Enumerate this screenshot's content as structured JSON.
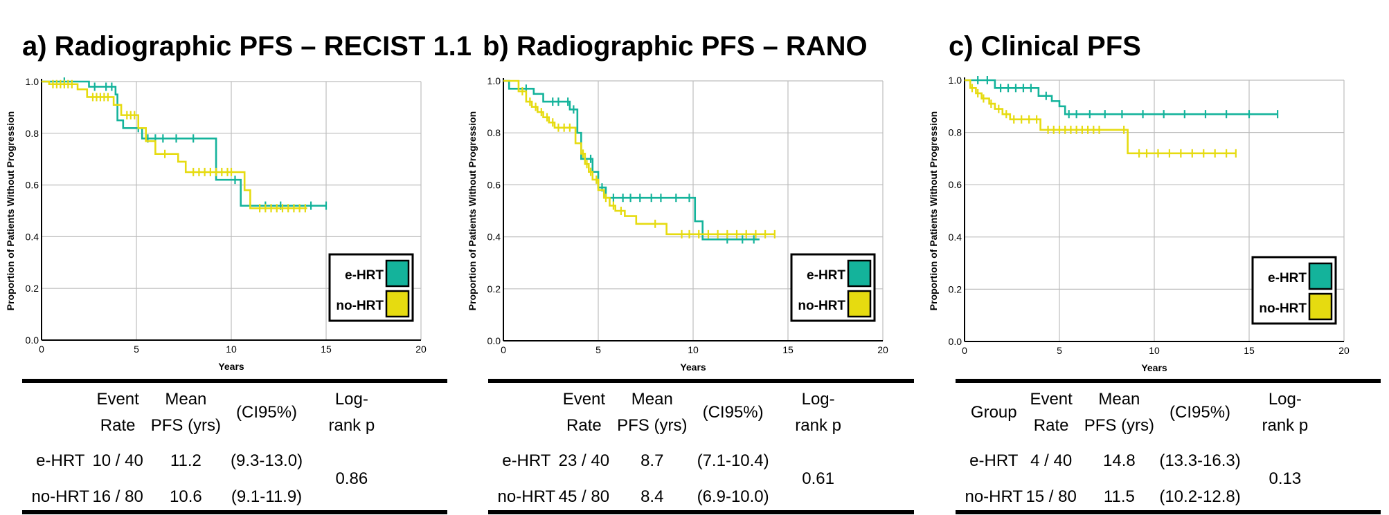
{
  "colors": {
    "e_hrt": "#14b39b",
    "no_hrt": "#e6db10",
    "grid": "#bdbdbd"
  },
  "chart_data": [
    {
      "type": "line",
      "subtype": "kaplan-meier step",
      "title": "a) Radiographic PFS – RECIST 1.1",
      "xlabel": "Years",
      "ylabel": "Proportion of Patients Without Progression",
      "xlim": [
        0,
        20
      ],
      "ylim": [
        0,
        1.0
      ],
      "xticks": [
        "0",
        "5",
        "10",
        "15",
        "20"
      ],
      "yticks": [
        "0.0",
        "0.2",
        "0.4",
        "0.6",
        "0.8",
        "1.0"
      ],
      "legend": [
        "e-HRT",
        "no-HRT"
      ],
      "series": [
        {
          "name": "e-HRT",
          "steps": [
            [
              0,
              1.0
            ],
            [
              2.5,
              0.98
            ],
            [
              3.9,
              0.95
            ],
            [
              4.0,
              0.85
            ],
            [
              4.3,
              0.82
            ],
            [
              5.3,
              0.78
            ],
            [
              9.2,
              0.62
            ],
            [
              10.5,
              0.52
            ],
            [
              15.0,
              0.52
            ]
          ],
          "censors": [
            1.2,
            2.8,
            3.4,
            3.7,
            5.1,
            5.6,
            6.0,
            6.4,
            7.1,
            8.0,
            10.2,
            11.8,
            12.6,
            14.2,
            15.0
          ]
        },
        {
          "name": "no-HRT",
          "steps": [
            [
              0,
              1.0
            ],
            [
              0.4,
              0.99
            ],
            [
              1.9,
              0.97
            ],
            [
              2.4,
              0.94
            ],
            [
              3.8,
              0.91
            ],
            [
              4.2,
              0.87
            ],
            [
              5.1,
              0.82
            ],
            [
              5.5,
              0.77
            ],
            [
              6.0,
              0.72
            ],
            [
              7.2,
              0.69
            ],
            [
              7.6,
              0.65
            ],
            [
              10.7,
              0.58
            ],
            [
              11.0,
              0.51
            ],
            [
              14.0,
              0.51
            ]
          ],
          "censors": [
            0.6,
            0.8,
            1.0,
            1.2,
            1.4,
            1.6,
            2.7,
            2.9,
            3.1,
            3.3,
            3.5,
            4.5,
            4.7,
            4.9,
            6.5,
            8.0,
            8.3,
            8.6,
            8.9,
            9.2,
            9.5,
            9.8,
            10.0,
            11.5,
            11.8,
            12.1,
            12.4,
            12.7,
            13.0,
            13.3,
            13.6,
            13.9
          ]
        }
      ]
    },
    {
      "type": "line",
      "subtype": "kaplan-meier step",
      "title": "b) Radiographic PFS – RANO",
      "xlabel": "Years",
      "ylabel": "Proportion of Patients Without Progression",
      "xlim": [
        0,
        20
      ],
      "ylim": [
        0,
        1.0
      ],
      "xticks": [
        "0",
        "5",
        "10",
        "15",
        "20"
      ],
      "yticks": [
        "0.0",
        "0.2",
        "0.4",
        "0.6",
        "0.8",
        "1.0"
      ],
      "legend": [
        "e-HRT",
        "no-HRT"
      ],
      "series": [
        {
          "name": "e-HRT",
          "steps": [
            [
              0,
              1.0
            ],
            [
              0.3,
              0.97
            ],
            [
              1.6,
              0.95
            ],
            [
              2.1,
              0.92
            ],
            [
              3.5,
              0.89
            ],
            [
              3.9,
              0.8
            ],
            [
              4.1,
              0.7
            ],
            [
              4.7,
              0.65
            ],
            [
              5.0,
              0.59
            ],
            [
              5.4,
              0.55
            ],
            [
              10.1,
              0.46
            ],
            [
              10.5,
              0.39
            ],
            [
              13.5,
              0.39
            ]
          ],
          "censors": [
            1.2,
            2.6,
            2.9,
            3.4,
            3.7,
            4.6,
            5.2,
            5.8,
            6.3,
            6.7,
            7.2,
            7.8,
            8.3,
            9.1,
            9.8,
            11.8,
            12.6,
            13.2
          ]
        },
        {
          "name": "no-HRT",
          "steps": [
            [
              0,
              1.0
            ],
            [
              0.8,
              0.96
            ],
            [
              1.2,
              0.92
            ],
            [
              1.5,
              0.9
            ],
            [
              1.8,
              0.88
            ],
            [
              2.1,
              0.86
            ],
            [
              2.4,
              0.84
            ],
            [
              2.7,
              0.82
            ],
            [
              3.8,
              0.76
            ],
            [
              4.1,
              0.72
            ],
            [
              4.3,
              0.68
            ],
            [
              4.5,
              0.65
            ],
            [
              4.7,
              0.62
            ],
            [
              5.0,
              0.58
            ],
            [
              5.3,
              0.55
            ],
            [
              5.6,
              0.52
            ],
            [
              5.9,
              0.5
            ],
            [
              6.4,
              0.48
            ],
            [
              7.0,
              0.45
            ],
            [
              8.6,
              0.41
            ],
            [
              14.3,
              0.41
            ]
          ],
          "censors": [
            1.0,
            1.4,
            1.7,
            2.0,
            2.3,
            2.6,
            2.9,
            3.2,
            3.5,
            4.2,
            4.4,
            4.6,
            4.9,
            5.4,
            5.8,
            6.2,
            8.0,
            9.4,
            9.8,
            10.3,
            10.8,
            11.3,
            11.8,
            12.3,
            12.8,
            13.3,
            13.8,
            14.3
          ]
        }
      ]
    },
    {
      "type": "line",
      "subtype": "kaplan-meier step",
      "title": "c) Clinical PFS",
      "xlabel": "Years",
      "ylabel": "Proportion of Patients Without Progression",
      "xlim": [
        0,
        20
      ],
      "ylim": [
        0,
        1.0
      ],
      "xticks": [
        "0",
        "5",
        "10",
        "15",
        "20"
      ],
      "yticks": [
        "0.0",
        "0.2",
        "0.4",
        "0.6",
        "0.8",
        "1.0"
      ],
      "legend": [
        "e-HRT",
        "no-HRT"
      ],
      "series": [
        {
          "name": "e-HRT",
          "steps": [
            [
              0,
              1.0
            ],
            [
              1.6,
              0.97
            ],
            [
              3.9,
              0.94
            ],
            [
              4.6,
              0.92
            ],
            [
              5.0,
              0.9
            ],
            [
              5.3,
              0.87
            ],
            [
              16.5,
              0.87
            ]
          ],
          "censors": [
            0.7,
            1.2,
            1.9,
            2.3,
            2.7,
            3.1,
            3.5,
            4.3,
            5.5,
            5.9,
            6.6,
            7.4,
            8.3,
            9.4,
            10.5,
            11.6,
            12.7,
            13.8,
            15.0,
            16.5
          ]
        },
        {
          "name": "no-HRT",
          "steps": [
            [
              0,
              1.0
            ],
            [
              0.3,
              0.97
            ],
            [
              0.6,
              0.95
            ],
            [
              0.9,
              0.93
            ],
            [
              1.3,
              0.91
            ],
            [
              1.6,
              0.89
            ],
            [
              2.0,
              0.87
            ],
            [
              2.4,
              0.85
            ],
            [
              4.0,
              0.81
            ],
            [
              8.6,
              0.72
            ],
            [
              14.3,
              0.72
            ]
          ],
          "censors": [
            0.4,
            0.7,
            1.0,
            1.4,
            1.8,
            2.2,
            2.6,
            3.0,
            3.4,
            3.8,
            4.4,
            4.7,
            5.0,
            5.3,
            5.6,
            5.9,
            6.2,
            6.5,
            6.8,
            7.1,
            8.4,
            9.2,
            9.6,
            10.2,
            10.8,
            11.4,
            12.0,
            12.6,
            13.2,
            13.8,
            14.3
          ]
        }
      ]
    }
  ],
  "tables": [
    {
      "headers": [
        [
          "",
          ""
        ],
        [
          "Event",
          "Rate"
        ],
        [
          "Mean",
          "PFS (yrs)"
        ],
        [
          "(CI95%)"
        ],
        [
          "Log-",
          "rank p"
        ]
      ],
      "rows": [
        [
          "e-HRT",
          "10 / 40",
          "11.2",
          "(9.3-13.0)"
        ],
        [
          "no-HRT",
          "16 / 80",
          "10.6",
          "(9.1-11.9)"
        ]
      ],
      "p": "0.86"
    },
    {
      "headers": [
        [
          "",
          ""
        ],
        [
          "Event",
          "Rate"
        ],
        [
          "Mean",
          "PFS (yrs)"
        ],
        [
          "(CI95%)"
        ],
        [
          "Log-",
          "rank p"
        ]
      ],
      "rows": [
        [
          "e-HRT",
          "23 / 40",
          "8.7",
          "(7.1-10.4)"
        ],
        [
          "no-HRT",
          "45 / 80",
          "8.4",
          "(6.9-10.0)"
        ]
      ],
      "p": "0.61"
    },
    {
      "headers": [
        [
          "Group"
        ],
        [
          "Event",
          "Rate"
        ],
        [
          "Mean",
          "PFS (yrs)"
        ],
        [
          "(CI95%)"
        ],
        [
          "Log-",
          "rank p"
        ]
      ],
      "rows": [
        [
          "e-HRT",
          "4 / 40",
          "14.8",
          "(13.3-16.3)"
        ],
        [
          "no-HRT",
          "15 / 80",
          "11.5",
          "(10.2-12.8)"
        ]
      ],
      "p": "0.13"
    }
  ]
}
